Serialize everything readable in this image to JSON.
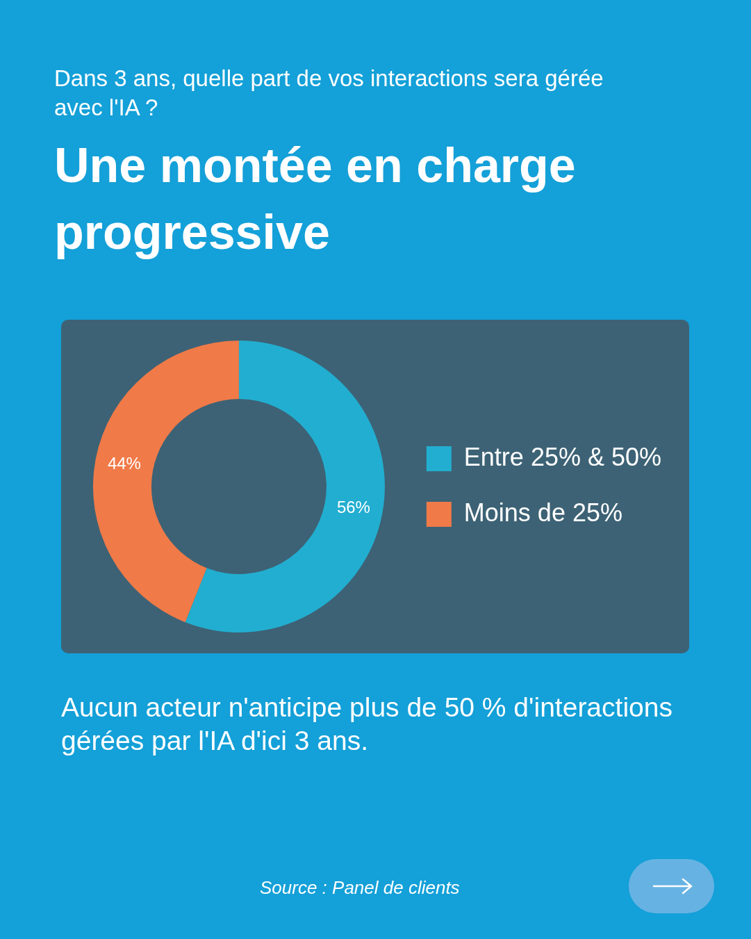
{
  "chart_data": {
    "type": "donut",
    "subtitle": "Dans 3 ans, quelle part de vos interactions sera gérée avec l'IA ?",
    "title": "Une montée en charge progressive",
    "categories": [
      "Entre 25% & 50%",
      "Moins de 25%"
    ],
    "values": [
      56,
      44
    ],
    "value_labels": [
      "56%",
      "44%"
    ],
    "colors": [
      "#22aed0",
      "#f07a48"
    ],
    "legend": "right",
    "annotations": [
      "Aucun acteur n'anticipe plus de 50 % d'interactions gérées par l'IA d'ici 3 ans.",
      "Source : Panel de clients"
    ]
  }
}
